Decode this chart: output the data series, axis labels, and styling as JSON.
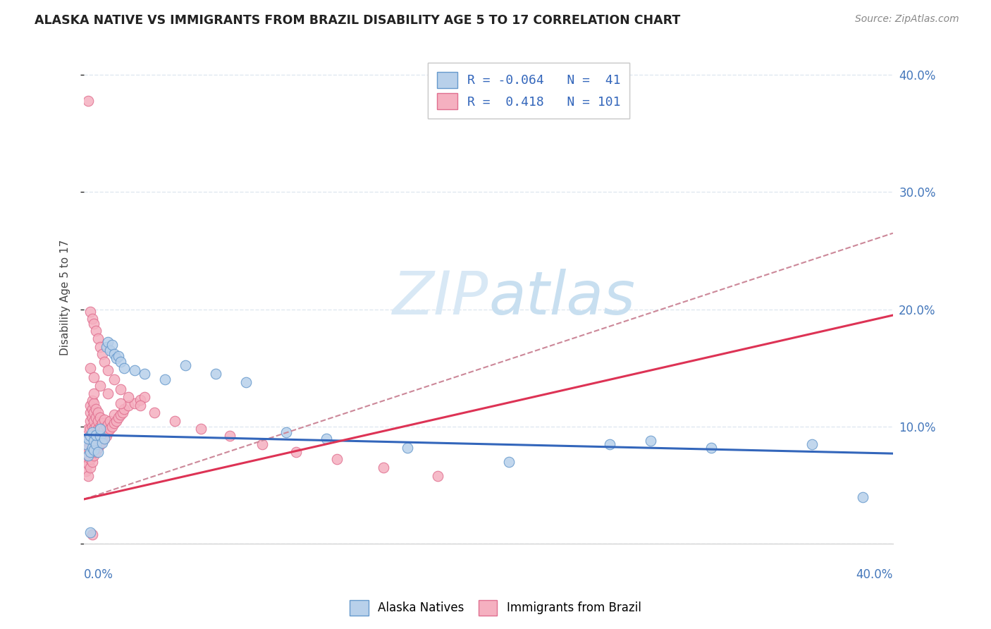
{
  "title": "ALASKA NATIVE VS IMMIGRANTS FROM BRAZIL DISABILITY AGE 5 TO 17 CORRELATION CHART",
  "source": "Source: ZipAtlas.com",
  "ylabel": "Disability Age 5 to 17",
  "xmin": 0.0,
  "xmax": 0.4,
  "ymin": 0.0,
  "ymax": 0.42,
  "background_color": "#ffffff",
  "alaska_color": "#b8d0ea",
  "alaska_edge": "#6699cc",
  "brazil_color": "#f5b0c0",
  "brazil_edge": "#e07090",
  "trend_alaska_color": "#3366bb",
  "trend_brazil_color": "#dd3355",
  "trend_dashed_color": "#cc8899",
  "grid_color": "#e0e8f0",
  "tick_color": "#4477bb",
  "title_color": "#222222",
  "source_color": "#888888",
  "legend_text_color": "#3366bb",
  "alaska_trend_x": [
    0.0,
    0.4
  ],
  "alaska_trend_y": [
    0.093,
    0.077
  ],
  "brazil_trend_x": [
    0.0,
    0.4
  ],
  "brazil_trend_y": [
    0.038,
    0.195
  ],
  "dashed_trend_x": [
    0.0,
    0.4
  ],
  "dashed_trend_y": [
    0.038,
    0.265
  ],
  "alaska_scatter": [
    [
      0.001,
      0.085
    ],
    [
      0.002,
      0.075
    ],
    [
      0.002,
      0.09
    ],
    [
      0.003,
      0.078
    ],
    [
      0.003,
      0.092
    ],
    [
      0.004,
      0.082
    ],
    [
      0.004,
      0.095
    ],
    [
      0.005,
      0.08
    ],
    [
      0.005,
      0.088
    ],
    [
      0.006,
      0.085
    ],
    [
      0.006,
      0.093
    ],
    [
      0.007,
      0.078
    ],
    [
      0.008,
      0.092
    ],
    [
      0.008,
      0.098
    ],
    [
      0.009,
      0.086
    ],
    [
      0.01,
      0.09
    ],
    [
      0.011,
      0.168
    ],
    [
      0.012,
      0.172
    ],
    [
      0.013,
      0.165
    ],
    [
      0.014,
      0.17
    ],
    [
      0.015,
      0.162
    ],
    [
      0.016,
      0.158
    ],
    [
      0.017,
      0.16
    ],
    [
      0.018,
      0.155
    ],
    [
      0.02,
      0.15
    ],
    [
      0.025,
      0.148
    ],
    [
      0.03,
      0.145
    ],
    [
      0.04,
      0.14
    ],
    [
      0.05,
      0.152
    ],
    [
      0.065,
      0.145
    ],
    [
      0.08,
      0.138
    ],
    [
      0.1,
      0.095
    ],
    [
      0.12,
      0.09
    ],
    [
      0.16,
      0.082
    ],
    [
      0.21,
      0.07
    ],
    [
      0.26,
      0.085
    ],
    [
      0.31,
      0.082
    ],
    [
      0.36,
      0.085
    ],
    [
      0.385,
      0.04
    ],
    [
      0.003,
      0.01
    ],
    [
      0.28,
      0.088
    ]
  ],
  "brazil_scatter": [
    [
      0.001,
      0.062
    ],
    [
      0.001,
      0.07
    ],
    [
      0.002,
      0.058
    ],
    [
      0.002,
      0.068
    ],
    [
      0.002,
      0.075
    ],
    [
      0.002,
      0.082
    ],
    [
      0.002,
      0.09
    ],
    [
      0.002,
      0.098
    ],
    [
      0.003,
      0.065
    ],
    [
      0.003,
      0.072
    ],
    [
      0.003,
      0.078
    ],
    [
      0.003,
      0.085
    ],
    [
      0.003,
      0.092
    ],
    [
      0.003,
      0.098
    ],
    [
      0.003,
      0.105
    ],
    [
      0.003,
      0.112
    ],
    [
      0.003,
      0.118
    ],
    [
      0.004,
      0.07
    ],
    [
      0.004,
      0.078
    ],
    [
      0.004,
      0.085
    ],
    [
      0.004,
      0.092
    ],
    [
      0.004,
      0.1
    ],
    [
      0.004,
      0.108
    ],
    [
      0.004,
      0.115
    ],
    [
      0.004,
      0.122
    ],
    [
      0.005,
      0.075
    ],
    [
      0.005,
      0.082
    ],
    [
      0.005,
      0.09
    ],
    [
      0.005,
      0.098
    ],
    [
      0.005,
      0.105
    ],
    [
      0.005,
      0.112
    ],
    [
      0.005,
      0.12
    ],
    [
      0.005,
      0.128
    ],
    [
      0.006,
      0.078
    ],
    [
      0.006,
      0.085
    ],
    [
      0.006,
      0.092
    ],
    [
      0.006,
      0.1
    ],
    [
      0.006,
      0.108
    ],
    [
      0.006,
      0.115
    ],
    [
      0.007,
      0.082
    ],
    [
      0.007,
      0.09
    ],
    [
      0.007,
      0.098
    ],
    [
      0.007,
      0.105
    ],
    [
      0.007,
      0.112
    ],
    [
      0.008,
      0.085
    ],
    [
      0.008,
      0.092
    ],
    [
      0.008,
      0.1
    ],
    [
      0.008,
      0.108
    ],
    [
      0.009,
      0.088
    ],
    [
      0.009,
      0.095
    ],
    [
      0.009,
      0.103
    ],
    [
      0.01,
      0.09
    ],
    [
      0.01,
      0.098
    ],
    [
      0.01,
      0.106
    ],
    [
      0.011,
      0.092
    ],
    [
      0.011,
      0.1
    ],
    [
      0.012,
      0.095
    ],
    [
      0.012,
      0.102
    ],
    [
      0.013,
      0.098
    ],
    [
      0.013,
      0.105
    ],
    [
      0.014,
      0.1
    ],
    [
      0.015,
      0.103
    ],
    [
      0.015,
      0.11
    ],
    [
      0.016,
      0.105
    ],
    [
      0.017,
      0.108
    ],
    [
      0.018,
      0.11
    ],
    [
      0.019,
      0.112
    ],
    [
      0.02,
      0.115
    ],
    [
      0.022,
      0.118
    ],
    [
      0.025,
      0.12
    ],
    [
      0.028,
      0.123
    ],
    [
      0.03,
      0.125
    ],
    [
      0.003,
      0.198
    ],
    [
      0.004,
      0.192
    ],
    [
      0.005,
      0.188
    ],
    [
      0.006,
      0.182
    ],
    [
      0.007,
      0.175
    ],
    [
      0.008,
      0.168
    ],
    [
      0.009,
      0.162
    ],
    [
      0.01,
      0.155
    ],
    [
      0.012,
      0.148
    ],
    [
      0.015,
      0.14
    ],
    [
      0.018,
      0.132
    ],
    [
      0.022,
      0.125
    ],
    [
      0.028,
      0.118
    ],
    [
      0.035,
      0.112
    ],
    [
      0.045,
      0.105
    ],
    [
      0.058,
      0.098
    ],
    [
      0.072,
      0.092
    ],
    [
      0.088,
      0.085
    ],
    [
      0.105,
      0.078
    ],
    [
      0.125,
      0.072
    ],
    [
      0.148,
      0.065
    ],
    [
      0.175,
      0.058
    ],
    [
      0.002,
      0.378
    ],
    [
      0.004,
      0.008
    ],
    [
      0.003,
      0.15
    ],
    [
      0.005,
      0.142
    ],
    [
      0.008,
      0.135
    ],
    [
      0.012,
      0.128
    ],
    [
      0.018,
      0.12
    ]
  ]
}
